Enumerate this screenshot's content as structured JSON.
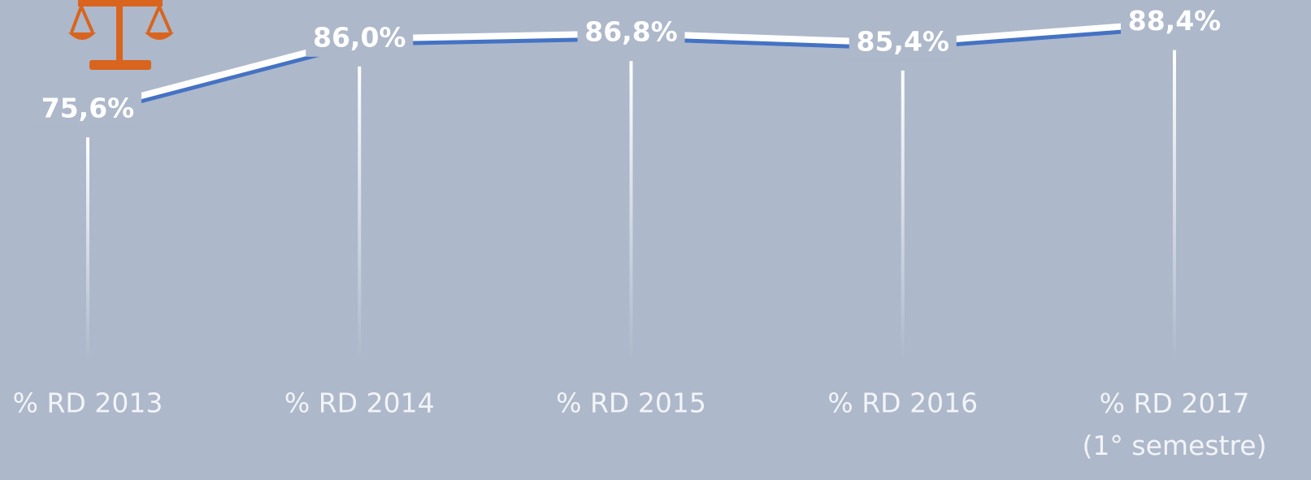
{
  "chart_data": {
    "type": "line",
    "categories": [
      "% RD 2013",
      "% RD 2014",
      "% RD 2015",
      "% RD 2016",
      "% RD 2017\n(1° semestre)"
    ],
    "series": [
      {
        "color": "#4472c4",
        "values": [
          75.6,
          86.0,
          86.8,
          85.4,
          88.4
        ],
        "value_labels": [
          "75,6%",
          "86,0%",
          "86,8%",
          "85,4%",
          "88,4%"
        ]
      }
    ],
    "ylim": [
      38.7,
      91.7
    ]
  }
}
